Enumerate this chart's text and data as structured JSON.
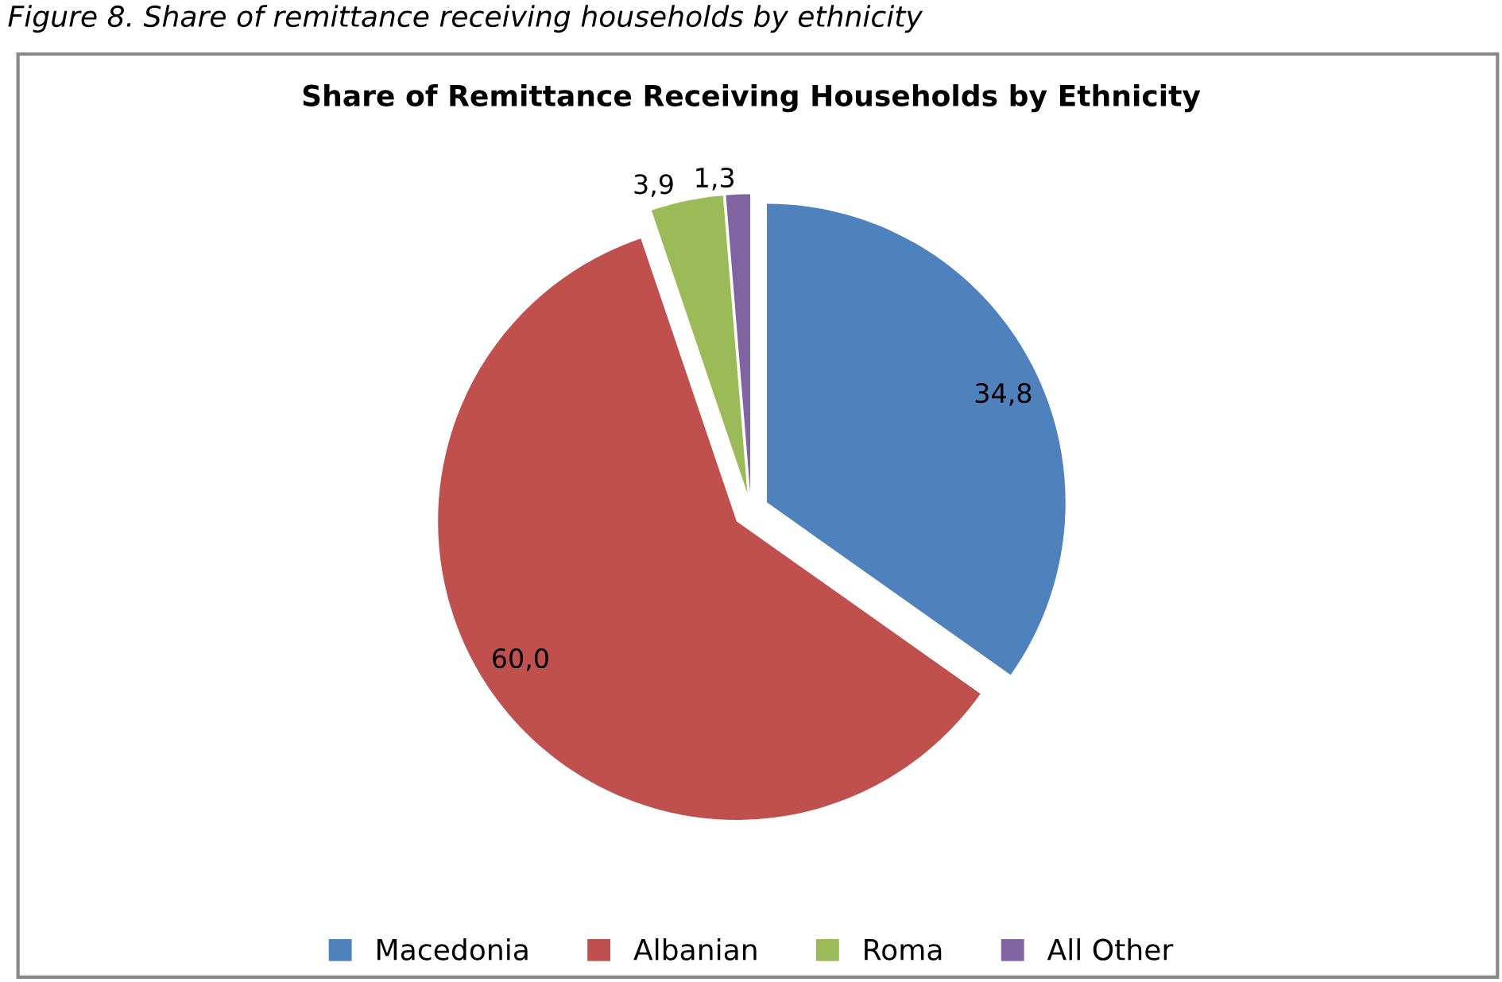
{
  "chart_data": {
    "type": "pie",
    "title": "Share of Remittance Receiving Households by Ethnicity",
    "annotations": [
      "Figure 8. Share of remittance receiving households by ethnicity"
    ],
    "categories": [
      "Macedonia",
      "Albanian",
      "Roma",
      "All Other"
    ],
    "values": [
      34.8,
      60.0,
      3.9,
      1.3
    ],
    "value_labels": [
      "34,8",
      "60,0",
      "3,9",
      "1,3"
    ],
    "colors": [
      "#4f81bd",
      "#c0504d",
      "#9bbb59",
      "#8064a2"
    ],
    "legend": "bottom"
  }
}
